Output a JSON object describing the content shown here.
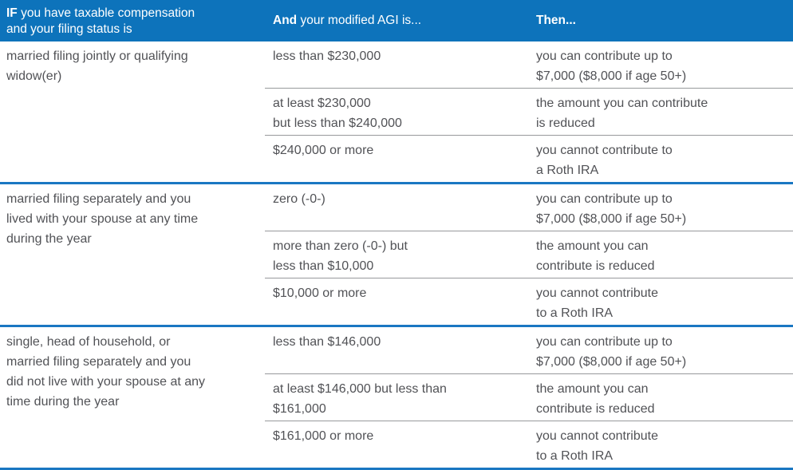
{
  "colors": {
    "header_blue": "#0d73bb",
    "divider_blue": "#1a77c2",
    "divider_gray": "#97999c",
    "text_gray": "#515256",
    "header_text": "#ffffff"
  },
  "header": {
    "filing_status_col": {
      "bold": "IF",
      "rest": " you have taxable compensation\nand your filing status is"
    },
    "agi_col": {
      "bold": "And",
      "rest": " your modified AGI is..."
    },
    "then_col": {
      "bold": "Then...",
      "rest": ""
    }
  },
  "groups": [
    {
      "status": "married filing jointly or qualifying\nwidow(er)",
      "rows": [
        {
          "agi": "less than $230,000",
          "then": "you can contribute up to\n$7,000 ($8,000 if age 50+)"
        },
        {
          "agi": "at least $230,000\nbut less than $240,000",
          "then": "the amount you can contribute\nis reduced"
        },
        {
          "agi": "$240,000 or more",
          "then": "you cannot contribute to\na Roth IRA"
        }
      ]
    },
    {
      "status": "married filing separately and you\nlived with your spouse at any time\nduring the year",
      "rows": [
        {
          "agi": "zero (-0-)",
          "then": "you can contribute up to\n$7,000 ($8,000 if age 50+)"
        },
        {
          "agi": "more than zero (-0-) but\nless than $10,000",
          "then": "the amount you can\ncontribute is reduced"
        },
        {
          "agi": "$10,000 or more",
          "then": "you cannot contribute\nto a Roth IRA"
        }
      ]
    },
    {
      "status": "single, head of household, or\nmarried filing separately and you\ndid not live with your spouse at any\ntime during the year",
      "rows": [
        {
          "agi": "less than $146,000",
          "then": "you can contribute up to\n$7,000 ($8,000 if age 50+)"
        },
        {
          "agi": "at least $146,000 but less than\n$161,000",
          "then": "the amount you can\ncontribute is reduced"
        },
        {
          "agi": "$161,000 or more",
          "then": "you cannot contribute\nto a Roth IRA"
        }
      ]
    }
  ]
}
